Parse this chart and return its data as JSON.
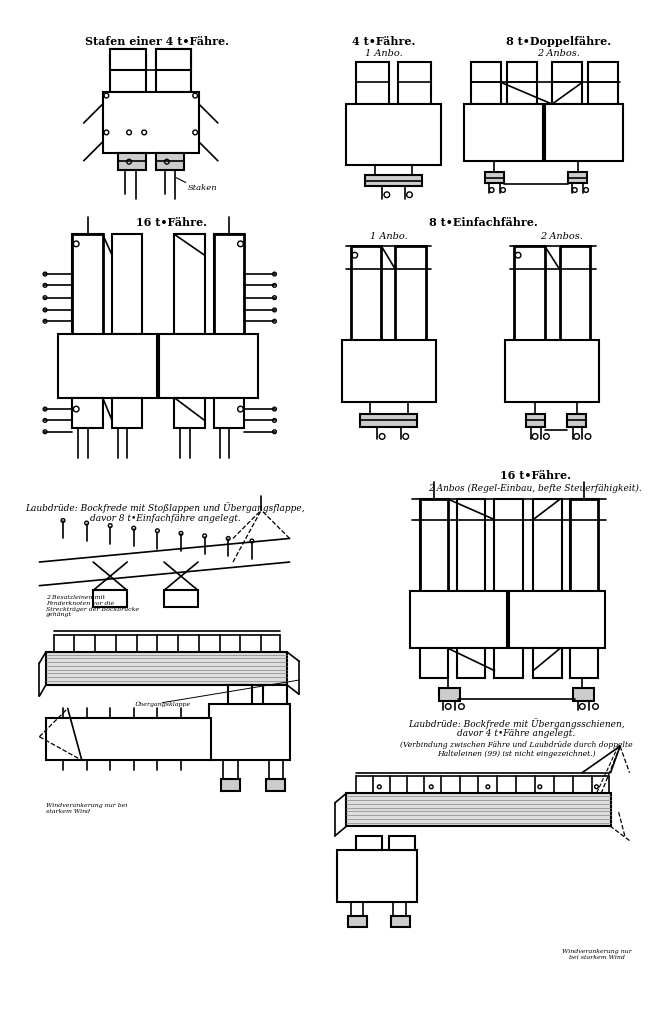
{
  "bg_color": "#ffffff",
  "line_color": "#000000",
  "title1": "Stafen einer 4 t•Fähre.",
  "title2a": "4 t•Fähre.",
  "title2b": "8 t•Doppelfähre.",
  "sub2a": "1 Anbo.",
  "sub2b": "2 Anbos.",
  "title3": "16 t•Fähre.",
  "title4": "8 t•Einfachfähre.",
  "sub4a": "1 Anbo.",
  "sub4b": "2 Anbos.",
  "title5": "16 t•Fähre.",
  "sub5": "2 Anbos (Regel-Einbau, befte Steuerfähigkeit).",
  "title6a": "Laubdrüde: Bockfrede mit Stoßlappen und Übergangsflappe,",
  "title6b": "davor 8 t•Einfachfähre angelegt.",
  "title7a": "Laubdrüde: Bockfrede mit Übergangsschienen,",
  "title7b": "davor 4 t•Fähre angelegt.",
  "title7c": "(Verbindung zwischen Fähre und Laubdrüde durch doppelte",
  "title7d": "Halteleinen (99) ist nicht eingezeichnet.)"
}
